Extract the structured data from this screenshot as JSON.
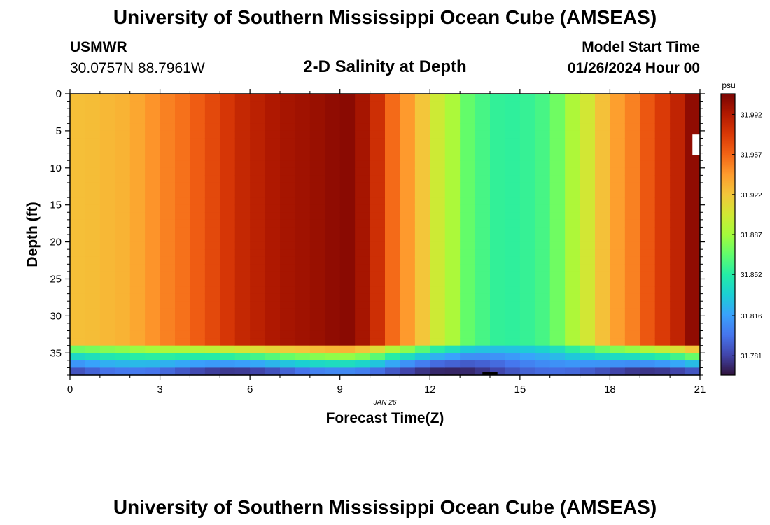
{
  "header": {
    "title": "University of Southern Mississippi Ocean Cube (AMSEAS)",
    "station": "USMWR",
    "coordinates": "30.0757N  88.7961W",
    "plot_title": "2-D Salinity at Depth",
    "start_label": "Model Start Time",
    "start_value": "01/26/2024 Hour 00"
  },
  "footer": {
    "title": "University of Southern Mississippi Ocean Cube (AMSEAS)"
  },
  "chart_data": {
    "type": "heatmap",
    "title": "2-D Salinity at Depth",
    "xlabel": "Forecast Time(Z)",
    "ylabel": "Depth (ft)",
    "x_date_label": "JAN 26",
    "xlim": [
      0,
      21
    ],
    "ylim": [
      0,
      38
    ],
    "y_inverted": true,
    "x_ticks": [
      0,
      3,
      6,
      9,
      12,
      15,
      18,
      21
    ],
    "y_ticks": [
      0,
      5,
      10,
      15,
      20,
      25,
      30,
      35
    ],
    "colorbar": {
      "unit": "psu",
      "min": 31.764,
      "max": 32.01,
      "tick_labels": [
        "31.992",
        "31.957",
        "31.922",
        "31.887",
        "31.852",
        "31.816",
        "31.781"
      ],
      "colormap": [
        "#30123b",
        "#4145ab",
        "#4675ed",
        "#39a2fc",
        "#1bcfd4",
        "#24eca6",
        "#61fc6c",
        "#a4fc3b",
        "#d1e834",
        "#f3c63a",
        "#fe9b2d",
        "#f36315",
        "#d93806",
        "#b11901",
        "#7a0402"
      ],
      "colormap_name": "turbo"
    },
    "x": [
      0.25,
      0.75,
      1.25,
      1.75,
      2.25,
      2.75,
      3.25,
      3.75,
      4.25,
      4.75,
      5.25,
      5.75,
      6.25,
      6.75,
      7.25,
      7.75,
      8.25,
      8.75,
      9.25,
      9.75,
      10.25,
      10.75,
      11.25,
      11.75,
      12.25,
      12.75,
      13.25,
      13.75,
      14.25,
      14.75,
      15.25,
      15.75,
      16.25,
      16.75,
      17.25,
      17.75,
      18.25,
      18.75,
      19.25,
      19.75,
      20.25,
      20.75
    ],
    "upper_layer_salinity": [
      31.925,
      31.926,
      31.928,
      31.93,
      31.935,
      31.942,
      31.948,
      31.953,
      31.96,
      31.968,
      31.976,
      31.984,
      31.988,
      31.993,
      31.996,
      31.998,
      32.0,
      32.003,
      32.005,
      31.996,
      31.98,
      31.955,
      31.94,
      31.922,
      31.903,
      31.89,
      31.87,
      31.862,
      31.856,
      31.855,
      31.857,
      31.862,
      31.873,
      31.891,
      31.905,
      31.924,
      31.938,
      31.948,
      31.962,
      31.974,
      31.986,
      32.003
    ],
    "notes": "Upper layer (0 to ~33.5 ft) is nearly uniform in depth per time column; a sharp halocline near 34-35 ft transitions to low salinity (~31.77-31.80 psu) at the bottom (~38 ft). A small white no-data patch appears near depth 6-8 ft at the final time step."
  }
}
